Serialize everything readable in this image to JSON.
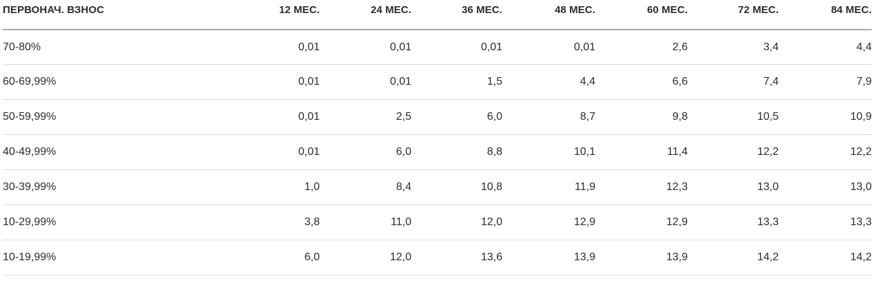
{
  "table": {
    "headers": [
      "ПЕРВОНАЧ. ВЗНОС",
      "12 МЕС.",
      "24 МЕС.",
      "36 МЕС.",
      "48 МЕС.",
      "60 МЕС.",
      "72 МЕС.",
      "84 МЕС."
    ],
    "rows": [
      [
        "70-80%",
        "0,01",
        "0,01",
        "0,01",
        "0,01",
        "2,6",
        "3,4",
        "4,4"
      ],
      [
        "60-69,99%",
        "0,01",
        "0,01",
        "1,5",
        "4,4",
        "6,6",
        "7,4",
        "7,9"
      ],
      [
        "50-59,99%",
        "0,01",
        "2,5",
        "6,0",
        "8,7",
        "9,8",
        "10,5",
        "10,9"
      ],
      [
        "40-49,99%",
        "0,01",
        "6,0",
        "8,8",
        "10,1",
        "11,4",
        "12,2",
        "12,2"
      ],
      [
        "30-39,99%",
        "1,0",
        "8,4",
        "10,8",
        "11,9",
        "12,3",
        "13,0",
        "13,0"
      ],
      [
        "10-29,99%",
        "3,8",
        "11,0",
        "12,0",
        "12,9",
        "12,9",
        "13,3",
        "13,3"
      ],
      [
        "10-19,99%",
        "6,0",
        "12,0",
        "13,6",
        "13,9",
        "13,9",
        "14,2",
        "14,2"
      ]
    ]
  }
}
